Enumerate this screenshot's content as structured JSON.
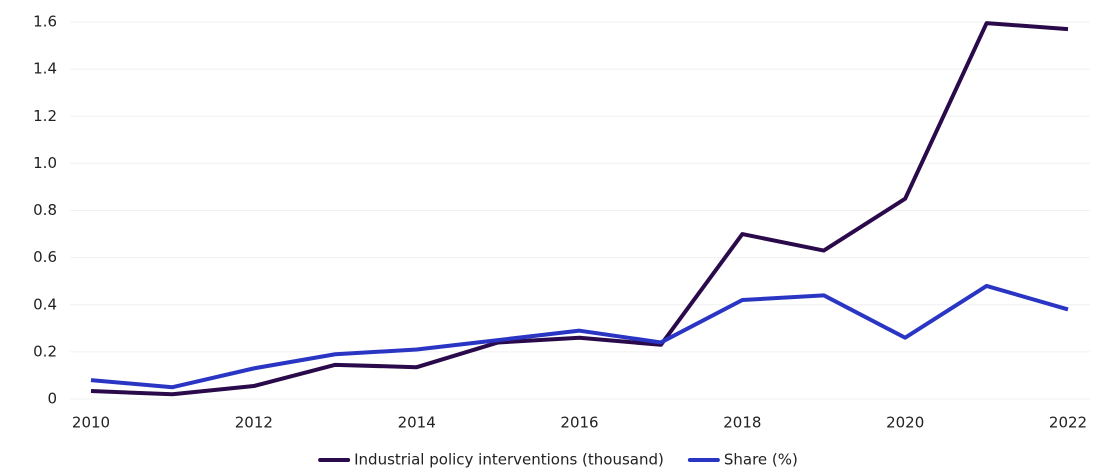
{
  "chart_data": {
    "type": "line",
    "x": [
      2010,
      2011,
      2012,
      2013,
      2014,
      2015,
      2016,
      2017,
      2018,
      2019,
      2020,
      2021,
      2022
    ],
    "series": [
      {
        "name": "Industrial policy interventions (thousand)",
        "color": "#2a0a4a",
        "values": [
          0.034,
          0.02,
          0.055,
          0.145,
          0.135,
          0.24,
          0.26,
          0.23,
          0.7,
          0.63,
          0.85,
          1.595,
          1.57
        ]
      },
      {
        "name": "Share (%)",
        "color": "#2a35c4",
        "values": [
          0.08,
          0.05,
          0.13,
          0.19,
          0.21,
          0.25,
          0.29,
          0.24,
          0.42,
          0.44,
          0.26,
          0.48,
          0.38
        ]
      }
    ],
    "xlim": [
      2010,
      2022
    ],
    "xticks": [
      2010,
      2012,
      2014,
      2016,
      2018,
      2020,
      2022
    ],
    "ylim": [
      0,
      1.6
    ],
    "yticks": [
      0,
      0.2,
      0.4,
      0.6,
      0.8,
      {
        "value": 1,
        "label": "1.0"
      },
      1.2,
      1.4,
      1.6
    ],
    "grid": true,
    "legend": "bottom"
  }
}
